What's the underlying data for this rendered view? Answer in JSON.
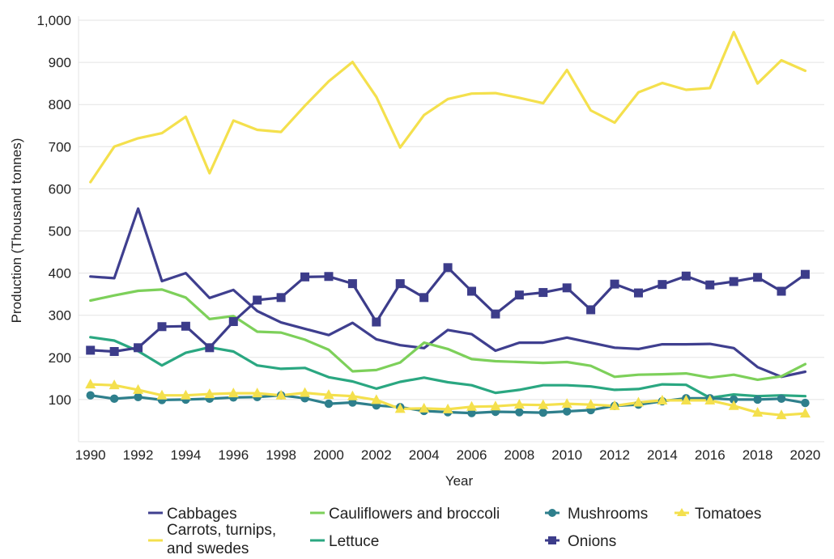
{
  "chart_data": {
    "type": "line",
    "title": "",
    "xlabel": "Year",
    "ylabel": "Production (Thousand tonnes)",
    "xlim": [
      1989.5,
      2020.8
    ],
    "ylim": [
      0,
      1000
    ],
    "x_ticks": [
      1990,
      1992,
      1994,
      1996,
      1998,
      2000,
      2002,
      2004,
      2006,
      2008,
      2010,
      2012,
      2014,
      2016,
      2018,
      2020
    ],
    "y_ticks": [
      100,
      200,
      300,
      400,
      500,
      600,
      700,
      800,
      900,
      1000
    ],
    "y_tick_labels": [
      "100",
      "200",
      "300",
      "400",
      "500",
      "600",
      "700",
      "800",
      "900",
      "1,000"
    ],
    "grid": "horizontal",
    "legend_position": "bottom",
    "x": [
      1990,
      1991,
      1992,
      1993,
      1994,
      1995,
      1996,
      1997,
      1998,
      1999,
      2000,
      2001,
      2002,
      2003,
      2004,
      2005,
      2006,
      2007,
      2008,
      2009,
      2010,
      2011,
      2012,
      2013,
      2014,
      2015,
      2016,
      2017,
      2018,
      2019,
      2020
    ],
    "series": [
      {
        "name": "Cabbages",
        "color": "#3f3f8f",
        "marker": "none",
        "values": [
          392,
          388,
          553,
          381,
          400,
          341,
          360,
          310,
          283,
          268,
          253,
          282,
          243,
          229,
          222,
          265,
          255,
          216,
          235,
          235,
          247,
          235,
          223,
          220,
          231,
          231,
          232,
          222,
          177,
          154,
          166
        ]
      },
      {
        "name": "Carrots, turnips, and swedes",
        "color": "#f4e04d",
        "marker": "none",
        "values": [
          616,
          700,
          720,
          732,
          771,
          637,
          762,
          740,
          735,
          797,
          855,
          901,
          818,
          698,
          775,
          813,
          826,
          827,
          816,
          803,
          882,
          786,
          757,
          829,
          851,
          835,
          839,
          972,
          850,
          905,
          880
        ]
      },
      {
        "name": "Cauliflowers and broccoli",
        "color": "#7dd05a",
        "marker": "none",
        "values": [
          335,
          347,
          358,
          361,
          342,
          291,
          298,
          261,
          259,
          242,
          218,
          167,
          170,
          188,
          235,
          220,
          196,
          191,
          189,
          187,
          189,
          180,
          154,
          159,
          160,
          162,
          152,
          159,
          147,
          155,
          184
        ]
      },
      {
        "name": "Lettuce",
        "color": "#2aa781",
        "marker": "none",
        "values": [
          248,
          240,
          215,
          181,
          211,
          224,
          214,
          181,
          173,
          175,
          153,
          143,
          126,
          142,
          152,
          141,
          134,
          116,
          123,
          134,
          134,
          131,
          123,
          125,
          136,
          135,
          104,
          112,
          108,
          110,
          108
        ]
      },
      {
        "name": "Mushrooms",
        "color": "#2e7f8c",
        "marker": "circle",
        "values": [
          110,
          102,
          106,
          99,
          100,
          102,
          105,
          106,
          110,
          103,
          90,
          93,
          86,
          82,
          73,
          70,
          68,
          71,
          70,
          69,
          72,
          75,
          85,
          88,
          96,
          103,
          103,
          100,
          100,
          102,
          92
        ]
      },
      {
        "name": "Onions",
        "color": "#3c3c8a",
        "marker": "square",
        "values": [
          217,
          214,
          223,
          273,
          274,
          223,
          285,
          336,
          342,
          391,
          392,
          375,
          284,
          375,
          342,
          413,
          357,
          303,
          348,
          354,
          365,
          313,
          374,
          353,
          373,
          393,
          372,
          380,
          390,
          357,
          397
        ]
      },
      {
        "name": "Tomatoes",
        "color": "#f4e04d",
        "marker": "triangle",
        "values": [
          136,
          134,
          123,
          110,
          110,
          113,
          115,
          115,
          110,
          116,
          111,
          108,
          99,
          78,
          79,
          77,
          83,
          84,
          88,
          87,
          90,
          88,
          85,
          93,
          98,
          98,
          98,
          85,
          69,
          63,
          67
        ]
      }
    ],
    "legend": {
      "row1": [
        "Cabbages",
        "Cauliflowers and broccoli",
        "Mushrooms",
        "Tomatoes"
      ],
      "carrots_line1": "Carrots, turnips,",
      "carrots_line2": "and swedes",
      "lettuce": "Lettuce",
      "onions": "Onions"
    }
  }
}
